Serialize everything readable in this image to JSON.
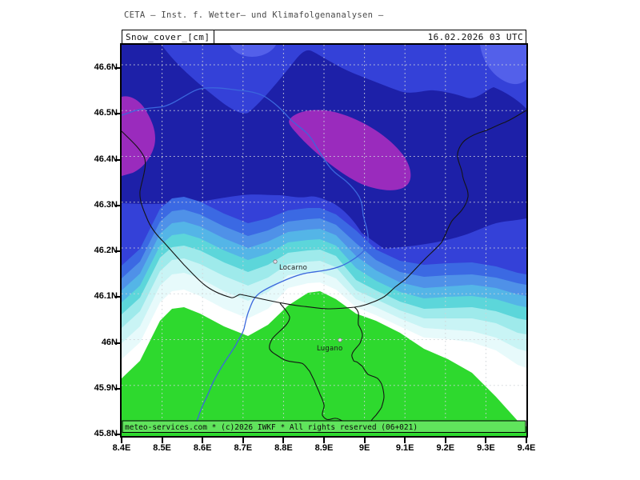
{
  "header": {
    "title": "CETA — Inst. f. Wetter— und Klimafolgenanalysen —",
    "product_label": "Snow_cover_[cm]",
    "datetime": "16.02.2026 03 UTC"
  },
  "axes": {
    "lat_ticks": [
      "46.6N",
      "46.5N",
      "46.4N",
      "46.3N",
      "46.2N",
      "46.1N",
      "46N",
      "45.9N",
      "45.8N"
    ],
    "lon_ticks": [
      "8.4E",
      "8.5E",
      "8.6E",
      "8.7E",
      "8.8E",
      "8.9E",
      "9E",
      "9.1E",
      "9.2E",
      "9.3E",
      "9.4E"
    ]
  },
  "map": {
    "cities": [
      {
        "name": "Locarno"
      },
      {
        "name": "Lugano"
      }
    ],
    "copyright": "meteo-services.com * (c)2026 IWKF * All rights reserved (06+021)",
    "palette": {
      "royal": "#3441d8",
      "navy": "#1d20a8",
      "royal_light": "#5360ea",
      "magenta": "#9a2bbd",
      "bands": [
        "#3b69e3",
        "#4f91e8",
        "#54b5e7",
        "#5cd6da",
        "#9eeaeb",
        "#c9f4f5",
        "#e7fafb",
        "#ffffff"
      ],
      "green": "#2ed92e",
      "bar_green": "#60e45c",
      "border": "#141414",
      "river": "#3b67dd",
      "grid": "#cfd4d8"
    }
  }
}
